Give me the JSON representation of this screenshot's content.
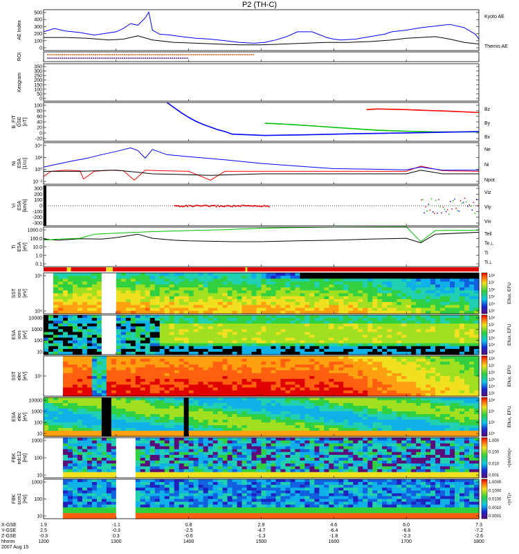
{
  "title": "P2 (TH-C)",
  "chart_data": [
    {
      "type": "line",
      "panel": "ae",
      "ylabel": "AE Index",
      "yticks": [
        "500",
        "400",
        "300",
        "200",
        "100",
        "0"
      ],
      "ylim": [
        0,
        500
      ],
      "series": [
        {
          "name": "Kyoto AE",
          "color": "#0000ff",
          "x": [
            1200,
            1215,
            1230,
            1250,
            1270,
            1285,
            1300,
            1310,
            1320,
            1330,
            1340,
            1345,
            1350,
            1360,
            1375,
            1390,
            1410,
            1430,
            1450,
            1470,
            1490,
            1505,
            1520,
            1535,
            1550,
            1570,
            1590,
            1600,
            1610,
            1630,
            1650,
            1670,
            1680,
            1700,
            1720,
            1740,
            1760,
            1780,
            1795,
            1800
          ],
          "y": [
            230,
            270,
            240,
            220,
            190,
            210,
            230,
            270,
            330,
            310,
            400,
            470,
            250,
            200,
            190,
            170,
            150,
            140,
            120,
            100,
            90,
            100,
            130,
            170,
            230,
            230,
            160,
            140,
            130,
            140,
            170,
            200,
            230,
            250,
            280,
            300,
            320,
            280,
            200,
            140
          ]
        },
        {
          "name": "Themis AE",
          "color": "#000000",
          "x": [
            1200,
            1230,
            1260,
            1290,
            1310,
            1330,
            1350,
            1380,
            1410,
            1440,
            1470,
            1500,
            1530,
            1560,
            1590,
            1620,
            1650,
            1680,
            1700,
            1720,
            1740,
            1760,
            1780,
            1800
          ],
          "y": [
            160,
            160,
            150,
            130,
            140,
            180,
            130,
            100,
            90,
            80,
            70,
            70,
            80,
            90,
            100,
            100,
            110,
            130,
            150,
            160,
            170,
            140,
            100,
            80
          ]
        }
      ]
    },
    {
      "type": "heatmap",
      "panel": "roi",
      "ylabel": "ROI"
    },
    {
      "type": "heatmap",
      "panel": "kesgram",
      "ylabel": "Kesgram",
      "yticks": [
        "350",
        "300",
        "250",
        "200",
        "150",
        "100",
        "50",
        "0"
      ]
    },
    {
      "type": "line",
      "panel": "bfit",
      "ylabel": "B_FIT\nGSE\n[nT]",
      "yticks": [
        "100",
        "80",
        "60",
        "40",
        "20",
        "0",
        "-20"
      ],
      "ylim": [
        -20,
        100
      ],
      "series": [
        {
          "name": "Bz",
          "color": "#ff0000",
          "x": [
            1645,
            1660,
            1680,
            1700,
            1720,
            1760,
            1800
          ],
          "y": [
            78,
            80,
            79,
            78,
            76,
            73,
            69
          ]
        },
        {
          "name": "By",
          "color": "#00c000",
          "x": [
            1505,
            1540,
            1580,
            1620,
            1660,
            1700,
            1740,
            1800
          ],
          "y": [
            36,
            32,
            26,
            20,
            14,
            11,
            9,
            9
          ]
        },
        {
          "name": "Bx",
          "color": "#0000ff",
          "x": [
            1370,
            1380,
            1390,
            1400,
            1410,
            1420,
            1430,
            1440,
            1450,
            1460,
            1505,
            1560,
            1620,
            1700,
            1800
          ],
          "y": [
            100,
            84,
            68,
            54,
            42,
            32,
            24,
            16,
            10,
            2,
            -2,
            0,
            3,
            6,
            10
          ]
        }
      ]
    },
    {
      "type": "line",
      "panel": "ni",
      "ylabel": "Ni\nESA\n[1/cc]",
      "yticks": [
        "10⁴",
        "10²",
        "10⁰",
        "10⁻²"
      ],
      "scale": "log",
      "series": [
        {
          "name": "Ne",
          "color": "#ff0000",
          "x": [
            1200,
            1210,
            1230,
            1250,
            1255,
            1270,
            1290,
            1310,
            1325,
            1340,
            1360,
            1400,
            1430,
            1450,
            1500,
            1550,
            1600,
            1650,
            1700,
            1720,
            1750,
            1800
          ],
          "y": [
            0.03,
            0.3,
            0.5,
            0.4,
            0.01,
            0.3,
            0.5,
            0.4,
            0.006,
            0.5,
            0.4,
            0.3,
            0.006,
            0.3,
            0.3,
            0.3,
            0.3,
            0.3,
            0.3,
            3,
            0.4,
            0.3
          ]
        },
        {
          "name": "Ni",
          "color": "#000000",
          "x": [
            1200,
            1250,
            1300,
            1330,
            1350,
            1380,
            1430,
            1500,
            1550,
            1600,
            1650,
            1700,
            1720,
            1750,
            1800
          ],
          "y": [
            0.3,
            0.3,
            0.5,
            0.2,
            0.1,
            0.08,
            0.05,
            0.1,
            0.1,
            0.1,
            0.1,
            0.1,
            0.5,
            0.1,
            0.1
          ]
        },
        {
          "name": "Npot",
          "color": "#0000ff",
          "x": [
            1200,
            1220,
            1240,
            1260,
            1280,
            1300,
            1320,
            1330,
            1340,
            1350,
            1370,
            1400,
            1450,
            1500,
            1550,
            1600,
            1650,
            1700,
            1720,
            1750,
            1800
          ],
          "y": [
            2,
            8,
            30,
            100,
            500,
            2000,
            10000,
            3000,
            100,
            5000,
            500,
            200,
            50,
            10,
            3,
            1,
            0.8,
            0.6,
            2,
            0.5,
            0.5
          ]
        }
      ]
    },
    {
      "type": "scatter",
      "panel": "vi",
      "ylabel": "Vi\nESA\n[km/s]",
      "yticks": [
        "300",
        "200",
        "100",
        "0",
        "-100",
        "-200",
        "-300"
      ],
      "ylim": [
        -350,
        350
      ],
      "series": [
        {
          "name": "Viz",
          "color": "#ff0000"
        },
        {
          "name": "Viy",
          "color": "#00c000"
        },
        {
          "name": "Vix",
          "color": "#0000ff"
        }
      ]
    },
    {
      "type": "line",
      "panel": "ti",
      "ylabel": "Ti\nESA\n[eV]",
      "yticks": [
        "1000.0",
        "100.0",
        "10.0",
        "1.0",
        "0.1"
      ],
      "scale": "log",
      "series": [
        {
          "name": "Tell",
          "color": "#000000",
          "x": [
            1200,
            1220,
            1250,
            1280,
            1300,
            1330,
            1350,
            1380,
            1400,
            1430,
            1460,
            1500,
            1550,
            1600,
            1650,
            1700,
            1720,
            1740,
            1800
          ],
          "y": [
            80,
            60,
            90,
            80,
            120,
            300,
            100,
            60,
            50,
            45,
            40,
            40,
            50,
            60,
            80,
            100,
            30,
            300,
            500
          ]
        },
        {
          "name": "Te⊥",
          "color": "#ff0000"
        },
        {
          "name": "Ti",
          "color": "#00c000",
          "x": [
            1200,
            1220,
            1250,
            1270,
            1300,
            1330,
            1350,
            1400,
            1450,
            1500,
            1550,
            1600,
            1650,
            1700,
            1720,
            1740,
            1800
          ],
          "y": [
            60,
            80,
            100,
            300,
            400,
            500,
            600,
            800,
            1000,
            1500,
            1800,
            2000,
            2100,
            2200,
            40,
            800,
            900
          ]
        },
        {
          "name": "Ti⊥",
          "color": "#0000ff"
        }
      ]
    },
    {
      "type": "heatmap",
      "panel": "sst1",
      "ylabel": "SST\nions\n[eV]",
      "yticks": [
        "10⁵",
        "10⁴"
      ],
      "colorbar_label": "Eflux, EFU",
      "colorbar_ticks": [
        "10⁸",
        "10⁷",
        "10⁶",
        "10⁵",
        "10⁴",
        "10³"
      ]
    },
    {
      "type": "heatmap",
      "panel": "esa1",
      "ylabel": "ESA\nions\n[eV]",
      "yticks": [
        "10000",
        "1000",
        "100",
        "10"
      ],
      "colorbar_label": "Eflux, EFU",
      "colorbar_ticks": [
        "10⁸",
        "10⁷",
        "10⁶",
        "10⁵",
        "10⁴",
        "10³"
      ]
    },
    {
      "type": "heatmap",
      "panel": "sst2",
      "ylabel": "SST\nelec\n[eV]",
      "yticks": [
        "10⁵"
      ],
      "colorbar_label": "Eflux, EFU",
      "colorbar_ticks": [
        "10⁸",
        "10⁷",
        "10⁶",
        "10⁵",
        "10⁴",
        "10³"
      ]
    },
    {
      "type": "heatmap",
      "panel": "esa2",
      "ylabel": "ESA\nelec\n[eV]",
      "yticks": [
        "10000",
        "1000",
        "100",
        "10"
      ],
      "colorbar_label": "Eflux, EFU",
      "colorbar_ticks": [
        "10⁸",
        "10⁷",
        "10⁶",
        "10⁵"
      ]
    },
    {
      "type": "heatmap",
      "panel": "fbk1",
      "ylabel": "FBK\nedc12\n[Hz]",
      "yticks": [
        "1000",
        "100",
        "10"
      ],
      "colorbar_label": "<|mV/m|>",
      "colorbar_ticks": [
        "1.000",
        "0.100",
        "0.010",
        "0.001"
      ]
    },
    {
      "type": "heatmap",
      "panel": "fbk2",
      "ylabel": "FBK\nscm1\n[Hz]",
      "yticks": [
        "1000",
        "100",
        "10"
      ],
      "colorbar_label": "<|nT|>",
      "colorbar_ticks": [
        "1.0000",
        "0.1000",
        "0.0100",
        "0.0010",
        "0.0001"
      ]
    }
  ],
  "orbit_table": {
    "row_labels": [
      "X-GSE",
      "Y-GSE",
      "Z-GSE",
      "hhmm",
      "2007 Aug 15"
    ],
    "columns": [
      [
        "1.9",
        "2.5",
        "-0.3",
        "1200"
      ],
      [
        "-1.1",
        "-0.3",
        "0.3",
        "1300"
      ],
      [
        "0.8",
        "-2.5",
        "-0.6",
        "1400"
      ],
      [
        "2.9",
        "-4.7",
        "-1.3",
        "1500"
      ],
      [
        "4.6",
        "-6.4",
        "-1.8",
        "1600"
      ],
      [
        "6.0",
        "-6.8",
        "-2.3",
        "1700"
      ],
      [
        "7.3",
        "-7.2",
        "-2.6",
        "1800"
      ]
    ]
  }
}
